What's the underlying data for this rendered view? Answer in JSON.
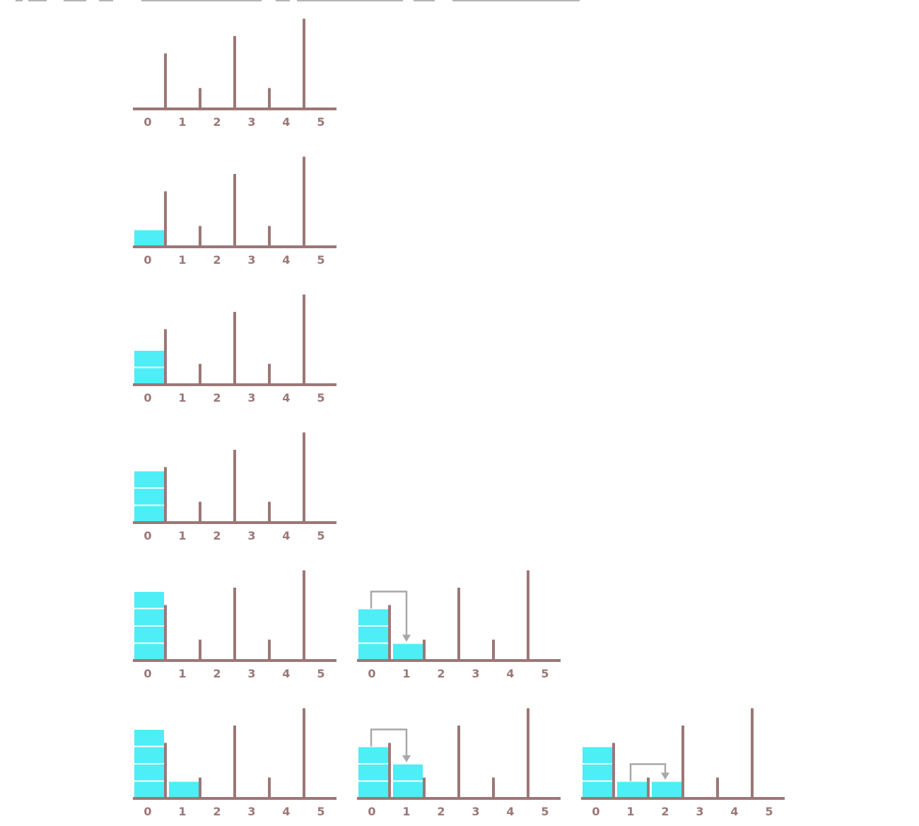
{
  "diagram": {
    "colors": {
      "wall": "#9c7777",
      "water": "#4deef5",
      "water_divider": "#ffffff",
      "arrow": "#a8a8a8",
      "tick_label": "#9c7777"
    },
    "tick_labels": [
      "0",
      "1",
      "2",
      "3",
      "4",
      "5"
    ],
    "wall_heights": [
      3,
      1,
      4,
      1,
      5,
      0
    ],
    "panels": [
      {
        "id": "r1c1",
        "row": 1,
        "col": 1,
        "water": [],
        "arrow": null
      },
      {
        "id": "r2c1",
        "row": 2,
        "col": 1,
        "water": [
          {
            "index": 0,
            "units": 1
          }
        ],
        "arrow": null
      },
      {
        "id": "r3c1",
        "row": 3,
        "col": 1,
        "water": [
          {
            "index": 0,
            "units": 2
          }
        ],
        "arrow": null
      },
      {
        "id": "r4c1",
        "row": 4,
        "col": 1,
        "water": [
          {
            "index": 0,
            "units": 3
          }
        ],
        "arrow": null
      },
      {
        "id": "r5c1",
        "row": 5,
        "col": 1,
        "water": [
          {
            "index": 0,
            "units": 4
          }
        ],
        "arrow": null
      },
      {
        "id": "r5c2",
        "row": 5,
        "col": 2,
        "water": [
          {
            "index": 0,
            "units": 3
          },
          {
            "index": 1,
            "units": 1
          }
        ],
        "arrow": {
          "from": 0,
          "to": 1
        }
      },
      {
        "id": "r6c1",
        "row": 6,
        "col": 1,
        "water": [
          {
            "index": 0,
            "units": 4
          },
          {
            "index": 1,
            "units": 1
          }
        ],
        "arrow": null
      },
      {
        "id": "r6c2",
        "row": 6,
        "col": 2,
        "water": [
          {
            "index": 0,
            "units": 3
          },
          {
            "index": 1,
            "units": 2
          }
        ],
        "arrow": {
          "from": 0,
          "to": 1
        }
      },
      {
        "id": "r6c3",
        "row": 6,
        "col": 3,
        "water": [
          {
            "index": 0,
            "units": 3
          },
          {
            "index": 1,
            "units": 1
          },
          {
            "index": 2,
            "units": 1
          }
        ],
        "arrow": {
          "from": 1,
          "to": 2
        }
      }
    ]
  }
}
